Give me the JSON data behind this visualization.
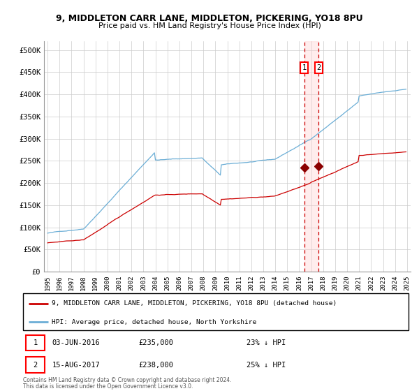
{
  "title1": "9, MIDDLETON CARR LANE, MIDDLETON, PICKERING, YO18 8PU",
  "title2": "Price paid vs. HM Land Registry's House Price Index (HPI)",
  "ylim": [
    0,
    520000
  ],
  "yticks": [
    0,
    50000,
    100000,
    150000,
    200000,
    250000,
    300000,
    350000,
    400000,
    450000,
    500000
  ],
  "x_start_year": 1995,
  "x_end_year": 2025,
  "marker1_date": 2016.42,
  "marker1_value": 235000,
  "marker2_date": 2017.62,
  "marker2_value": 238000,
  "marker1_text": "03-JUN-2016",
  "marker1_price": "£235,000",
  "marker1_pct": "23% ↓ HPI",
  "marker2_text": "15-AUG-2017",
  "marker2_price": "£238,000",
  "marker2_pct": "25% ↓ HPI",
  "hpi_color": "#6baed6",
  "price_color": "#cc0000",
  "marker_color": "#8b0000",
  "vline_color": "#cc0000",
  "shade_color": "#ffcccc",
  "legend_label1": "9, MIDDLETON CARR LANE, MIDDLETON, PICKERING, YO18 8PU (detached house)",
  "legend_label2": "HPI: Average price, detached house, North Yorkshire",
  "footnote1": "Contains HM Land Registry data © Crown copyright and database right 2024.",
  "footnote2": "This data is licensed under the Open Government Licence v3.0.",
  "background_color": "#ffffff",
  "grid_color": "#cccccc"
}
